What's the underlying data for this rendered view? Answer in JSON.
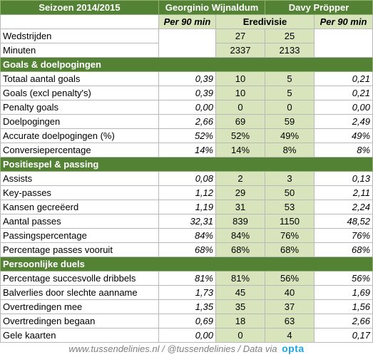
{
  "header": {
    "season": "Seizoen 2014/2015",
    "player1": "Georginio Wijnaldum",
    "player2": "Davy Pröpper",
    "per90_left": "Per 90 min",
    "competition": "Eredivisie",
    "per90_right": "Per 90 min"
  },
  "general": [
    {
      "label": "Wedstrijden",
      "v1": "27",
      "v2": "25"
    },
    {
      "label": "Minuten",
      "v1": "2337",
      "v2": "2133"
    }
  ],
  "sections": [
    {
      "title": "Goals & doelpogingen",
      "rows": [
        {
          "label": "Totaal aantal goals",
          "p1": "0,39",
          "v1": "10",
          "v2": "5",
          "p2": "0,21"
        },
        {
          "label": "Goals (excl penalty's)",
          "p1": "0,39",
          "v1": "10",
          "v2": "5",
          "p2": "0,21"
        },
        {
          "label": "Penalty goals",
          "p1": "0,00",
          "v1": "0",
          "v2": "0",
          "p2": "0,00"
        },
        {
          "label": "Doelpogingen",
          "p1": "2,66",
          "v1": "69",
          "v2": "59",
          "p2": "2,49"
        },
        {
          "label": "Accurate doelpogingen (%)",
          "p1": "52%",
          "v1": "52%",
          "v2": "49%",
          "p2": "49%"
        },
        {
          "label": "Conversiepercentage",
          "p1": "14%",
          "v1": "14%",
          "v2": "8%",
          "p2": "8%"
        }
      ]
    },
    {
      "title": "Positiespel & passing",
      "rows": [
        {
          "label": "Assists",
          "p1": "0,08",
          "v1": "2",
          "v2": "3",
          "p2": "0,13"
        },
        {
          "label": "Key-passes",
          "p1": "1,12",
          "v1": "29",
          "v2": "50",
          "p2": "2,11"
        },
        {
          "label": "Kansen gecreëerd",
          "p1": "1,19",
          "v1": "31",
          "v2": "53",
          "p2": "2,24"
        },
        {
          "label": "Aantal passes",
          "p1": "32,31",
          "v1": "839",
          "v2": "1150",
          "p2": "48,52"
        },
        {
          "label": "Passingspercentage",
          "p1": "84%",
          "v1": "84%",
          "v2": "76%",
          "p2": "76%"
        },
        {
          "label": "Percentage passes vooruit",
          "p1": "68%",
          "v1": "68%",
          "v2": "68%",
          "p2": "68%"
        }
      ]
    },
    {
      "title": "Persoonlijke duels",
      "rows": [
        {
          "label": "Percentage succesvolle dribbels",
          "p1": "81%",
          "v1": "81%",
          "v2": "56%",
          "p2": "56%"
        },
        {
          "label": "Balverlies door slechte aanname",
          "p1": "1,73",
          "v1": "45",
          "v2": "40",
          "p2": "1,69"
        },
        {
          "label": "Overtredingen mee",
          "p1": "1,35",
          "v1": "35",
          "v2": "37",
          "p2": "1,56"
        },
        {
          "label": "Overtredingen begaan",
          "p1": "0,69",
          "v1": "18",
          "v2": "63",
          "p2": "2,66"
        },
        {
          "label": "Gele kaarten",
          "p1": "0,00",
          "v1": "0",
          "v2": "4",
          "p2": "0,17"
        }
      ]
    }
  ],
  "footer": {
    "text": "www.tussendelinies.nl / @tussendelinies / Data via",
    "logo": "opta"
  },
  "colors": {
    "header_green": "#548235",
    "light_green": "#d8e4bc",
    "footer_text": "#7f7f7f",
    "opta_blue": "#1ca6e1"
  }
}
